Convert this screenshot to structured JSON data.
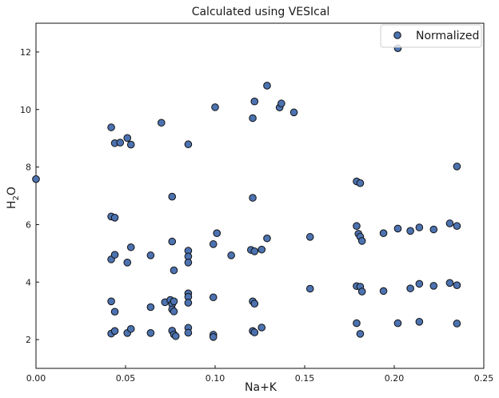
{
  "chart_data": {
    "type": "scatter",
    "title": "Calculated using VESIcal",
    "xlabel": "Na+K",
    "ylabel_main": "H",
    "ylabel_sub": "2",
    "ylabel_tail": "O",
    "xlim": [
      0,
      0.25
    ],
    "ylim": [
      1,
      13
    ],
    "xticks": [
      0.0,
      0.05,
      0.1,
      0.15,
      0.2,
      0.25
    ],
    "xtick_labels": [
      "0.00",
      "0.05",
      "0.10",
      "0.15",
      "0.20",
      "0.25"
    ],
    "yticks": [
      2,
      4,
      6,
      8,
      10,
      12
    ],
    "ytick_labels": [
      "2",
      "4",
      "6",
      "8",
      "10",
      "12"
    ],
    "legend": {
      "label": "Normalized",
      "location": "top-right"
    },
    "series": [
      {
        "name": "Normalized",
        "color": "#4c72b0",
        "edge_color": "#111111",
        "points": [
          [
            0.0,
            7.58
          ],
          [
            0.042,
            9.38
          ],
          [
            0.044,
            8.83
          ],
          [
            0.047,
            8.85
          ],
          [
            0.051,
            9.01
          ],
          [
            0.053,
            8.78
          ],
          [
            0.042,
            6.28
          ],
          [
            0.044,
            6.24
          ],
          [
            0.042,
            4.79
          ],
          [
            0.044,
            4.95
          ],
          [
            0.051,
            4.68
          ],
          [
            0.053,
            5.21
          ],
          [
            0.042,
            3.33
          ],
          [
            0.044,
            2.97
          ],
          [
            0.042,
            2.21
          ],
          [
            0.044,
            2.3
          ],
          [
            0.051,
            2.23
          ],
          [
            0.053,
            2.37
          ],
          [
            0.064,
            4.93
          ],
          [
            0.064,
            3.13
          ],
          [
            0.064,
            2.23
          ],
          [
            0.07,
            9.54
          ],
          [
            0.072,
            3.3
          ],
          [
            0.076,
            6.97
          ],
          [
            0.076,
            5.41
          ],
          [
            0.077,
            4.41
          ],
          [
            0.075,
            3.38
          ],
          [
            0.076,
            3.23
          ],
          [
            0.077,
            3.33
          ],
          [
            0.076,
            3.05
          ],
          [
            0.077,
            2.98
          ],
          [
            0.076,
            2.31
          ],
          [
            0.077,
            2.18
          ],
          [
            0.078,
            2.12
          ],
          [
            0.085,
            8.79
          ],
          [
            0.085,
            5.09
          ],
          [
            0.085,
            4.89
          ],
          [
            0.085,
            4.68
          ],
          [
            0.085,
            3.61
          ],
          [
            0.085,
            3.49
          ],
          [
            0.085,
            3.28
          ],
          [
            0.085,
            2.41
          ],
          [
            0.085,
            2.24
          ],
          [
            0.1,
            10.08
          ],
          [
            0.101,
            5.7
          ],
          [
            0.099,
            5.32
          ],
          [
            0.099,
            3.47
          ],
          [
            0.099,
            2.17
          ],
          [
            0.099,
            2.09
          ],
          [
            0.109,
            4.93
          ],
          [
            0.121,
            9.7
          ],
          [
            0.122,
            10.28
          ],
          [
            0.121,
            6.93
          ],
          [
            0.12,
            5.12
          ],
          [
            0.122,
            5.07
          ],
          [
            0.126,
            5.13
          ],
          [
            0.129,
            5.52
          ],
          [
            0.121,
            3.33
          ],
          [
            0.122,
            3.25
          ],
          [
            0.121,
            2.3
          ],
          [
            0.122,
            2.25
          ],
          [
            0.126,
            2.42
          ],
          [
            0.129,
            10.83
          ],
          [
            0.136,
            10.07
          ],
          [
            0.137,
            10.21
          ],
          [
            0.144,
            9.9
          ],
          [
            0.153,
            5.57
          ],
          [
            0.153,
            3.77
          ],
          [
            0.179,
            7.5
          ],
          [
            0.181,
            7.44
          ],
          [
            0.179,
            5.95
          ],
          [
            0.18,
            5.68
          ],
          [
            0.181,
            5.58
          ],
          [
            0.182,
            5.43
          ],
          [
            0.179,
            3.86
          ],
          [
            0.181,
            3.84
          ],
          [
            0.182,
            3.67
          ],
          [
            0.179,
            2.57
          ],
          [
            0.181,
            2.2
          ],
          [
            0.194,
            5.7
          ],
          [
            0.194,
            3.69
          ],
          [
            0.202,
            12.13
          ],
          [
            0.202,
            5.86
          ],
          [
            0.209,
            5.78
          ],
          [
            0.214,
            5.9
          ],
          [
            0.222,
            5.83
          ],
          [
            0.202,
            2.57
          ],
          [
            0.214,
            2.62
          ],
          [
            0.209,
            3.78
          ],
          [
            0.214,
            3.94
          ],
          [
            0.222,
            3.87
          ],
          [
            0.231,
            6.04
          ],
          [
            0.235,
            5.95
          ],
          [
            0.235,
            8.02
          ],
          [
            0.231,
            3.97
          ],
          [
            0.235,
            3.89
          ],
          [
            0.235,
            2.56
          ]
        ]
      }
    ]
  }
}
